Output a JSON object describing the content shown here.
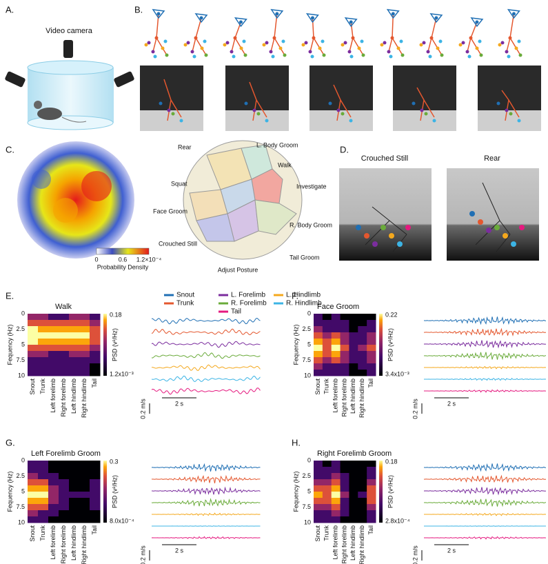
{
  "panel_a": {
    "label": "A.",
    "camera_label": "Video camera"
  },
  "panel_b": {
    "label": "B."
  },
  "panel_c": {
    "label": "C.",
    "colorbar_ticks": [
      "0",
      "0.6",
      "1.2×10⁻⁴"
    ],
    "colorbar_title": "Probability Density",
    "regions": [
      "Rear",
      "L. Body Groom",
      "Walk",
      "Squat",
      "Investigate",
      "Face Groom",
      "R. Body Groom",
      "Crouched Still",
      "Tail Groom",
      "Adjust Posture"
    ]
  },
  "panel_d": {
    "label": "D.",
    "titles": [
      "Crouched Still",
      "Rear"
    ]
  },
  "legend": [
    {
      "name": "Snout",
      "color": "#1f6fb4"
    },
    {
      "name": "Trunk",
      "color": "#e4572e"
    },
    {
      "name": "L. Forelimb",
      "color": "#7b2d9e"
    },
    {
      "name": "R. Forelimb",
      "color": "#6aab3a"
    },
    {
      "name": "L. Hindlimb",
      "color": "#f4a81d"
    },
    {
      "name": "R. Hindlimb",
      "color": "#3cb4e5"
    },
    {
      "name": "Tail",
      "color": "#e5197f"
    }
  ],
  "spectrogram_axes": {
    "y_label": "Fequency (Hz)",
    "y_ticks": [
      "0",
      "2.5",
      "5",
      "7.5",
      "10"
    ],
    "x_ticks": [
      "Snout",
      "Trunk",
      "Left forelimb",
      "Right forelimb",
      "Left hindlimb",
      "Right hindlimb",
      "Tail"
    ],
    "colorbar_label": "PSD (v²/Hz)",
    "speed_scale": "0.2 m/s",
    "time_scale": "2 s"
  },
  "spectrograms": [
    {
      "label": "E.",
      "title": "Walk",
      "colorbar_max": "0.18",
      "colorbar_min": "1.2x10⁻³"
    },
    {
      "label": "F.",
      "title": "Face Groom",
      "colorbar_max": "0.22",
      "colorbar_min": "3.4x10⁻³"
    },
    {
      "label": "G.",
      "title": "Left Forelimb Groom",
      "colorbar_max": "0.3",
      "colorbar_min": "8.0x10⁻⁴"
    },
    {
      "label": "H.",
      "title": "Right Forelimb Groom",
      "colorbar_max": "0.18",
      "colorbar_min": "2.8x10⁻⁴"
    }
  ]
}
